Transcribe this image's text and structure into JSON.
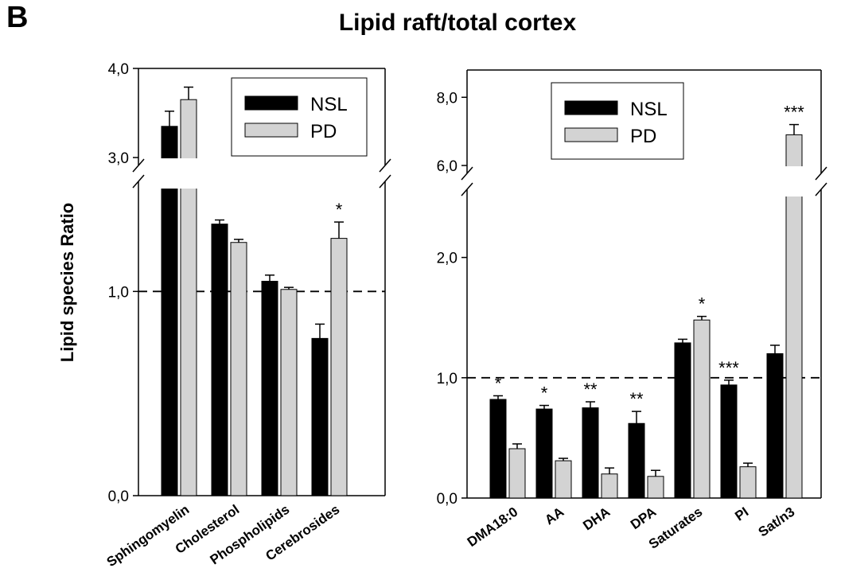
{
  "panel_label": "B",
  "figure_title": "Lipid raft/total cortex",
  "y_axis_label": "Lipid species Ratio",
  "colors": {
    "nsl": "#000000",
    "pd": "#d3d3d3",
    "axis": "#000000"
  },
  "legend": {
    "nsl": "NSL",
    "pd": "PD"
  },
  "chart_data": [
    {
      "type": "bar",
      "title": "Lipid raft/total cortex",
      "ylabel": "Lipid species Ratio",
      "axis_break": true,
      "lower_range": [
        0,
        1.5
      ],
      "upper_range": [
        3.0,
        4.0
      ],
      "y_ticks": [
        {
          "value": 0,
          "label": "0,0"
        },
        {
          "value": 1,
          "label": "1,0"
        },
        {
          "value": 3,
          "label": "3,0"
        },
        {
          "value": 4,
          "label": "4,0"
        }
      ],
      "reference_line": 1.0,
      "legend_position": "top-right",
      "categories": [
        "Sphingomyelin",
        "Cholesterol",
        "Phospholipids",
        "Cerebrosides"
      ],
      "series": [
        {
          "name": "NSL",
          "values": [
            3.35,
            1.33,
            1.05,
            0.77
          ],
          "errors": [
            0.17,
            0.02,
            0.03,
            0.07
          ]
        },
        {
          "name": "PD",
          "values": [
            3.65,
            1.24,
            1.01,
            1.26
          ],
          "errors": [
            0.14,
            0.015,
            0.01,
            0.08
          ]
        }
      ],
      "annotations": [
        {
          "category": "Cerebrosides",
          "series": "PD",
          "text": "*"
        }
      ]
    },
    {
      "type": "bar",
      "title": "Lipid raft/total cortex",
      "ylabel": "Lipid species Ratio",
      "axis_break": true,
      "lower_range": [
        0,
        2.5
      ],
      "upper_range": [
        6.0,
        8.8
      ],
      "y_ticks": [
        {
          "value": 0,
          "label": "0,0"
        },
        {
          "value": 1,
          "label": "1,0"
        },
        {
          "value": 2,
          "label": "2,0"
        },
        {
          "value": 6,
          "label": "6,0"
        },
        {
          "value": 8,
          "label": "8,0"
        }
      ],
      "reference_line": 1.0,
      "legend_position": "top-left",
      "categories": [
        "DMA18:0",
        "AA",
        "DHA",
        "DPA",
        "Saturates",
        "PI",
        "Sat/n3"
      ],
      "series": [
        {
          "name": "NSL",
          "values": [
            0.82,
            0.74,
            0.75,
            0.62,
            1.29,
            0.94,
            1.2
          ],
          "errors": [
            0.03,
            0.03,
            0.05,
            0.1,
            0.03,
            0.04,
            0.07
          ]
        },
        {
          "name": "PD",
          "values": [
            0.41,
            0.31,
            0.2,
            0.18,
            1.48,
            0.26,
            6.9
          ],
          "errors": [
            0.04,
            0.02,
            0.05,
            0.05,
            0.03,
            0.03,
            0.3
          ]
        }
      ],
      "annotations": [
        {
          "category": "DMA18:0",
          "series": "NSL",
          "text": "*"
        },
        {
          "category": "AA",
          "series": "NSL",
          "text": "*"
        },
        {
          "category": "DHA",
          "series": "NSL",
          "text": "**"
        },
        {
          "category": "DPA",
          "series": "NSL",
          "text": "**"
        },
        {
          "category": "Saturates",
          "series": "PD",
          "text": "*"
        },
        {
          "category": "PI",
          "series": "NSL",
          "text": "***"
        },
        {
          "category": "Sat/n3",
          "series": "PD",
          "text": "***"
        }
      ]
    }
  ]
}
